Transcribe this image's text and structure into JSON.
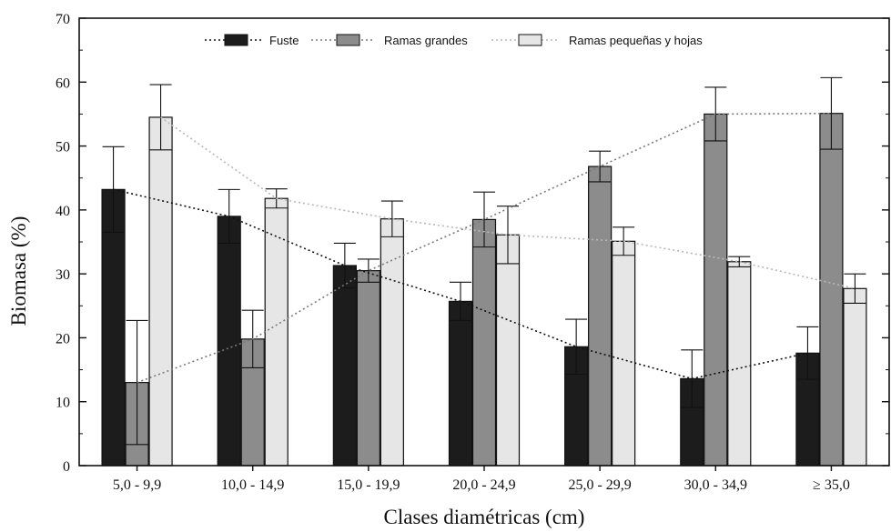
{
  "chart_data": {
    "type": "bar",
    "xlabel": "Clases diamétricas (cm)",
    "ylabel": "Biomasa (%)",
    "ylim": [
      0,
      70
    ],
    "yticks": [
      0,
      10,
      20,
      30,
      40,
      50,
      60,
      70
    ],
    "categories": [
      "5,0 - 9,9",
      "10,0 - 14,9",
      "15,0 - 19,9",
      "20,0 - 24,9",
      "25,0 - 29,9",
      "30,0 - 34,9",
      "≥ 35,0"
    ],
    "legend_position": "top",
    "grid": false,
    "series": [
      {
        "name": "Fuste",
        "values": [
          43.2,
          39.0,
          31.3,
          25.7,
          18.6,
          13.6,
          17.6
        ],
        "errors": [
          6.7,
          4.2,
          3.5,
          3.0,
          4.3,
          4.5,
          4.1
        ],
        "fill": "#1c1c1c",
        "line_color": "#111111",
        "line_dash": "2,3"
      },
      {
        "name": "Ramas grandes",
        "values": [
          13.0,
          19.8,
          30.5,
          38.5,
          46.8,
          55.0,
          55.1
        ],
        "errors": [
          9.7,
          4.5,
          1.8,
          4.3,
          2.4,
          4.2,
          5.6
        ],
        "fill": "#8c8c8c",
        "line_color": "#7a7a7a",
        "line_dash": "2,3"
      },
      {
        "name": "Ramas pequeñas y hojas",
        "values": [
          54.5,
          41.8,
          38.6,
          36.1,
          35.1,
          31.9,
          27.7
        ],
        "errors": [
          5.1,
          1.5,
          2.8,
          4.5,
          2.2,
          0.8,
          2.3
        ],
        "fill": "#e6e6e6",
        "line_color": "#b8b8b8",
        "line_dash": "2,3"
      }
    ]
  }
}
